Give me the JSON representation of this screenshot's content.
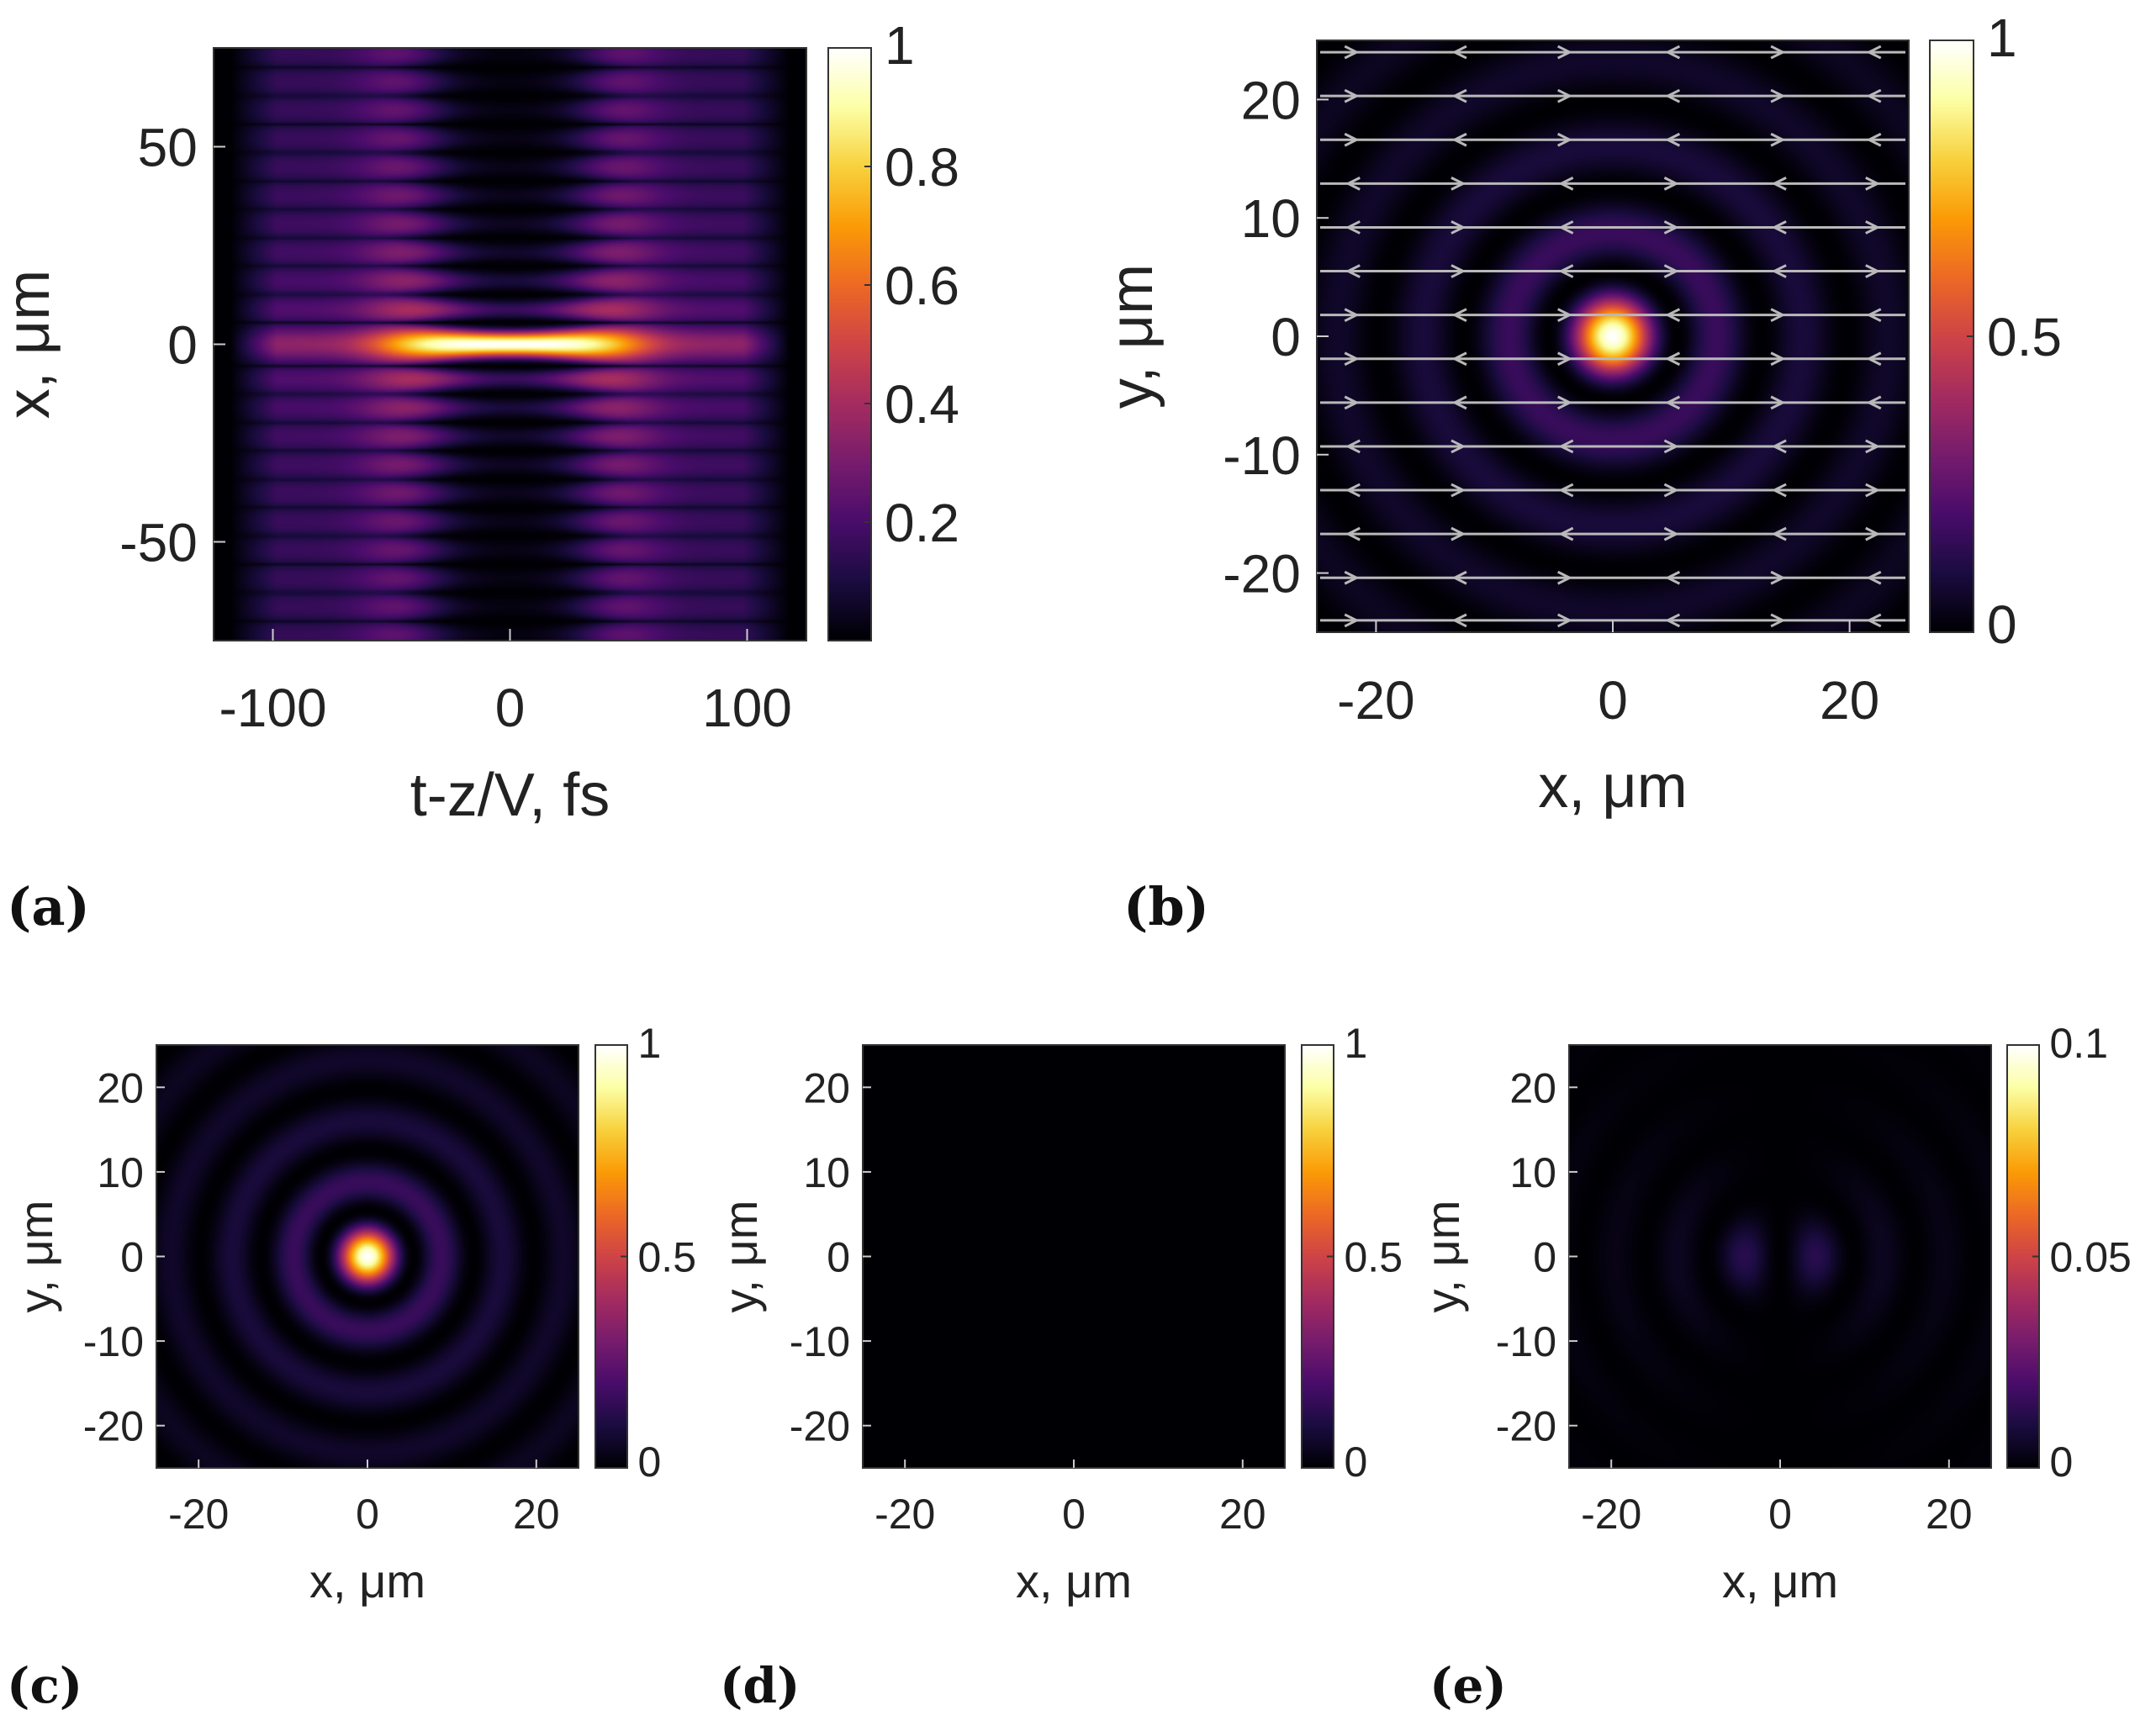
{
  "colormap": [
    "#000004",
    "#1b0c41",
    "#4a0c6b",
    "#781c6d",
    "#a52c60",
    "#cf4446",
    "#ed6925",
    "#fb9b06",
    "#f7d13d",
    "#fcffa4",
    "#ffffff"
  ],
  "streamline_color": "#b9b9b9",
  "chart_data": [
    {
      "id": "a",
      "panel_label": "(a)",
      "type": "heatmap",
      "description_key": "spatiotemporal intensity |E|^2 vs t-z/V and x",
      "xlabel": "t-z/V, fs",
      "ylabel": "x, μm",
      "xlim": [
        -125,
        125
      ],
      "ylim": [
        -75,
        75
      ],
      "xticks": [
        -100,
        0,
        100
      ],
      "yticks": [
        -50,
        0,
        50
      ],
      "colorbar": {
        "range": [
          0,
          1
        ],
        "ticks": [
          0.2,
          0.4,
          0.6,
          0.8,
          1
        ],
        "tick_labels": [
          "0.2",
          "0.4",
          "0.6",
          "0.8",
          "1"
        ]
      },
      "field": {
        "kind": "spatiotemporal",
        "envelope_fs": 55,
        "cutoff_fs": 118,
        "zero_radius_um": 5.5,
        "peak": 1.0
      }
    },
    {
      "id": "b",
      "panel_label": "(b)",
      "type": "heatmap",
      "xlabel": "x, μm",
      "ylabel": "y, μm",
      "xlim": [
        -25,
        25
      ],
      "ylim": [
        -25,
        25
      ],
      "xticks": [
        -20,
        0,
        20
      ],
      "yticks": [
        -20,
        -10,
        0,
        10,
        20
      ],
      "colorbar": {
        "range": [
          0,
          1
        ],
        "ticks": [
          0,
          0.5,
          1
        ],
        "tick_labels": [
          "0",
          "0.5",
          "1"
        ]
      },
      "field": {
        "kind": "bessel-rings",
        "zero_radius_um": 5.5,
        "peak": 1.0
      },
      "overlay": "horizontal polarization streamlines",
      "streamline_rows_y_um": [
        24,
        20.3,
        16.6,
        12.9,
        9.2,
        5.5,
        1.8,
        -1.9,
        -5.6,
        -9.3,
        -13,
        -16.7,
        -20.4,
        -24
      ]
    },
    {
      "id": "c",
      "panel_label": "(c)",
      "type": "heatmap",
      "xlabel": "x, μm",
      "ylabel": "y, μm",
      "xlim": [
        -25,
        25
      ],
      "ylim": [
        -25,
        25
      ],
      "xticks": [
        -20,
        0,
        20
      ],
      "yticks": [
        -20,
        -10,
        0,
        10,
        20
      ],
      "colorbar": {
        "range": [
          0,
          1
        ],
        "ticks": [
          0,
          0.5,
          1
        ],
        "tick_labels": [
          "0",
          "0.5",
          "1"
        ]
      },
      "field": {
        "kind": "bessel-rings",
        "zero_radius_um": 5.5,
        "peak": 1.0
      }
    },
    {
      "id": "d",
      "panel_label": "(d)",
      "type": "heatmap",
      "xlabel": "x, μm",
      "ylabel": "y, μm",
      "xlim": [
        -25,
        25
      ],
      "ylim": [
        -25,
        25
      ],
      "xticks": [
        -20,
        0,
        20
      ],
      "yticks": [
        -20,
        -10,
        0,
        10,
        20
      ],
      "colorbar": {
        "range": [
          0,
          1
        ],
        "ticks": [
          0,
          0.5,
          1
        ],
        "tick_labels": [
          "0",
          "0.5",
          "1"
        ]
      },
      "field": {
        "kind": "zero",
        "peak": 0.0
      }
    },
    {
      "id": "e",
      "panel_label": "(e)",
      "type": "heatmap",
      "xlabel": "x, μm",
      "ylabel": "y, μm",
      "xlim": [
        -25,
        25
      ],
      "ylim": [
        -25,
        25
      ],
      "xticks": [
        -20,
        0,
        20
      ],
      "yticks": [
        -20,
        -10,
        0,
        10,
        20
      ],
      "colorbar": {
        "range": [
          0,
          0.1
        ],
        "ticks": [
          0,
          0.05,
          0.1
        ],
        "tick_labels": [
          "0",
          "0.05",
          "0.1"
        ]
      },
      "field": {
        "kind": "longitudinal-dipole",
        "zero_radius_um": 5.5,
        "peak": 0.013
      }
    }
  ]
}
